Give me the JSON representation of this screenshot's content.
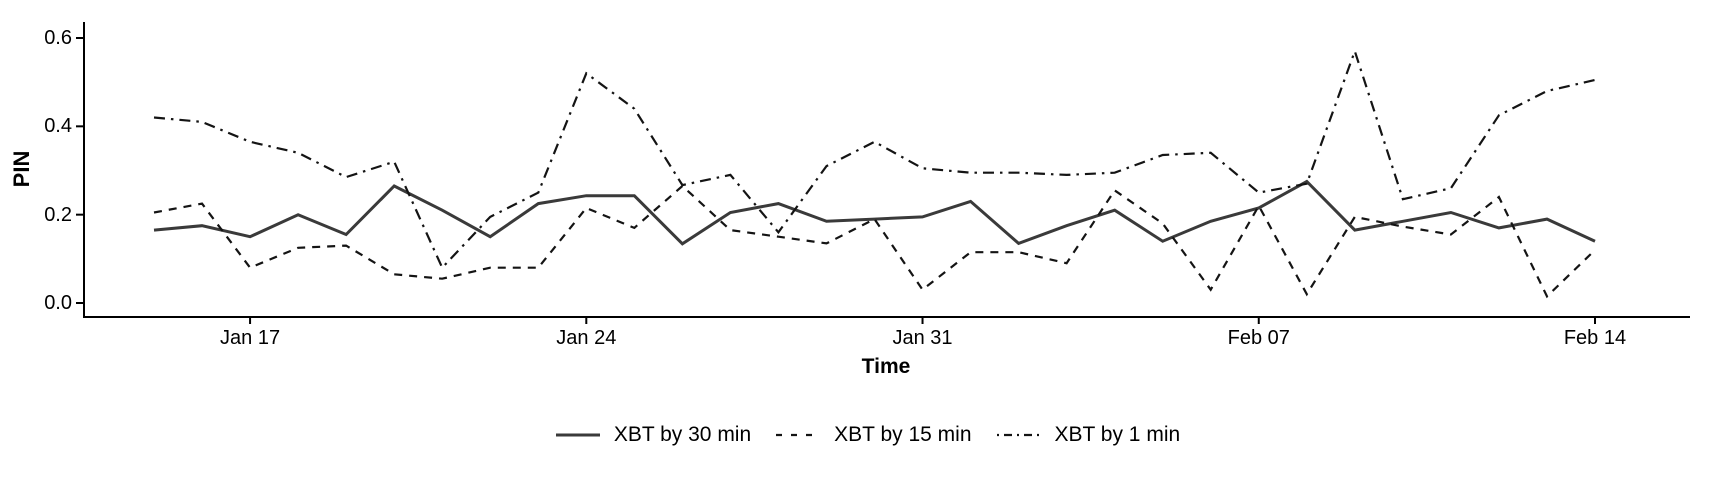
{
  "chart_data": {
    "type": "line",
    "title": "",
    "xlabel": "Time",
    "ylabel": "PIN",
    "ylim": [
      0.0,
      0.6
    ],
    "grid": false,
    "background": "#ffffff",
    "axis_color": "#000000",
    "legend_position": "bottom-center",
    "ytick_labels": [
      "0.0",
      "0.2",
      "0.4",
      "0.6"
    ],
    "ytick_values": [
      0.0,
      0.2,
      0.4,
      0.6
    ],
    "xtick_labels": [
      "Jan 17",
      "Jan 24",
      "Jan 31",
      "Feb 07",
      "Feb 14"
    ],
    "xtick_indices": [
      2,
      9,
      16,
      23,
      30
    ],
    "categories": [
      "Jan 15",
      "Jan 16",
      "Jan 17",
      "Jan 18",
      "Jan 19",
      "Jan 20",
      "Jan 21",
      "Jan 22",
      "Jan 23",
      "Jan 24",
      "Jan 25",
      "Jan 26",
      "Jan 27",
      "Jan 28",
      "Jan 29",
      "Jan 30",
      "Jan 31",
      "Feb 01",
      "Feb 02",
      "Feb 03",
      "Feb 04",
      "Feb 05",
      "Feb 06",
      "Feb 07",
      "Feb 08",
      "Feb 09",
      "Feb 10",
      "Feb 11",
      "Feb 12",
      "Feb 13",
      "Feb 14"
    ],
    "series": [
      {
        "name": "XBT by 30 min",
        "linestyle": "solid",
        "color": "#3a3a3a",
        "values": [
          0.165,
          0.175,
          0.15,
          0.2,
          0.155,
          0.265,
          0.21,
          0.15,
          0.225,
          0.243,
          0.243,
          0.134,
          0.205,
          0.225,
          0.185,
          0.19,
          0.195,
          0.23,
          0.135,
          0.175,
          0.21,
          0.14,
          0.185,
          0.215,
          0.275,
          0.165,
          0.185,
          0.205,
          0.17,
          0.19,
          0.14
        ]
      },
      {
        "name": "XBT by 15 min",
        "linestyle": "dashed",
        "color": "#141414",
        "values": [
          0.205,
          0.225,
          0.08,
          0.125,
          0.13,
          0.065,
          0.055,
          0.08,
          0.08,
          0.215,
          0.17,
          0.265,
          0.165,
          0.15,
          0.135,
          0.19,
          0.03,
          0.115,
          0.115,
          0.09,
          0.255,
          0.18,
          0.03,
          0.22,
          0.02,
          0.195,
          0.173,
          0.155,
          0.24,
          0.015,
          0.12
        ]
      },
      {
        "name": "XBT by 1 min",
        "linestyle": "dashdot",
        "color": "#141414",
        "values": [
          0.42,
          0.41,
          0.365,
          0.34,
          0.285,
          0.32,
          0.08,
          0.195,
          0.25,
          0.52,
          0.44,
          0.267,
          0.29,
          0.16,
          0.31,
          0.365,
          0.305,
          0.295,
          0.295,
          0.29,
          0.295,
          0.335,
          0.34,
          0.25,
          0.27,
          0.57,
          0.235,
          0.26,
          0.425,
          0.48,
          0.505
        ]
      }
    ]
  }
}
